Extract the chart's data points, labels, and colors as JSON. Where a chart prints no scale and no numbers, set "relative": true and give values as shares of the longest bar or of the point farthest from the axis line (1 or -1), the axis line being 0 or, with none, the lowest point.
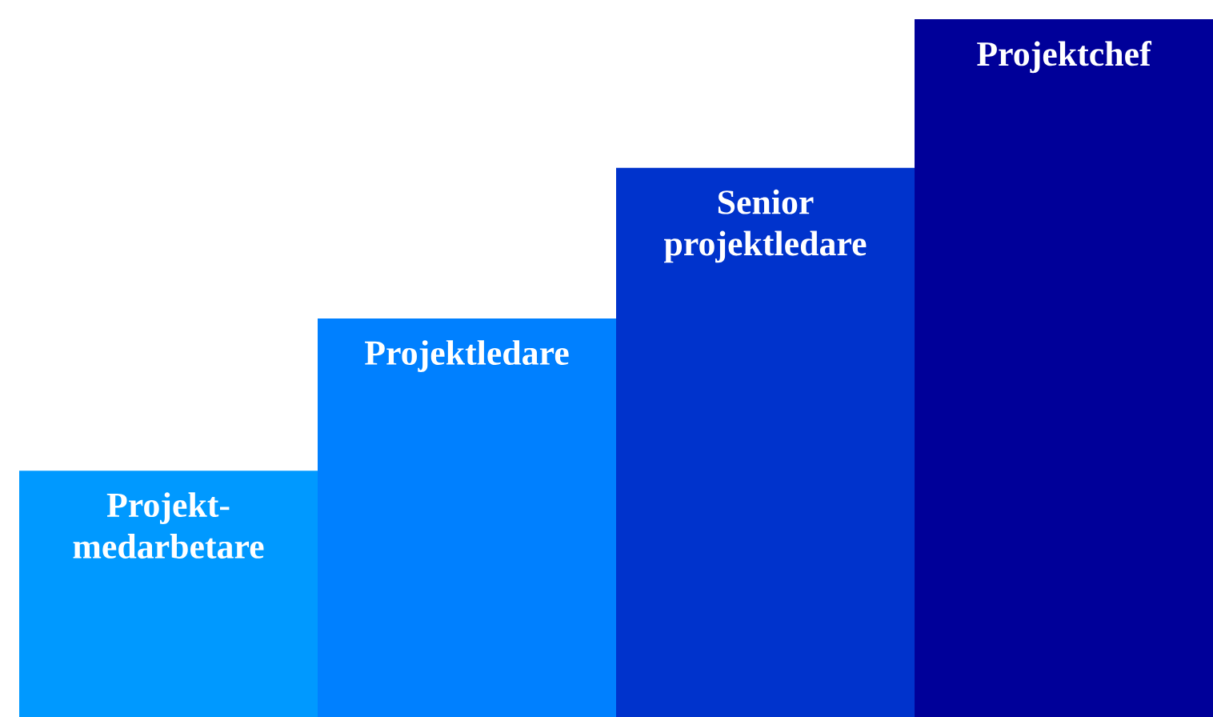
{
  "chart_data": {
    "type": "bar",
    "relative": true,
    "categories": [
      "Projekt-medarbetare",
      "Projektledare",
      "Senior projektledare",
      "Projektchef"
    ],
    "values": [
      0.353,
      0.571,
      0.787,
      1
    ],
    "colors": [
      "#0099ff",
      "#0080ff",
      "#0033cc",
      "#000099"
    ]
  }
}
